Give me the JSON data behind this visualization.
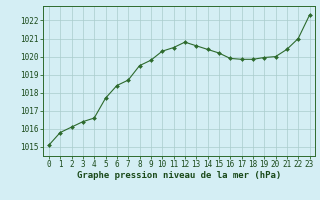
{
  "x": [
    0,
    1,
    2,
    3,
    4,
    5,
    6,
    7,
    8,
    9,
    10,
    11,
    12,
    13,
    14,
    15,
    16,
    17,
    18,
    19,
    20,
    21,
    22,
    23
  ],
  "y": [
    1015.1,
    1015.8,
    1016.1,
    1016.4,
    1016.6,
    1017.7,
    1018.4,
    1018.7,
    1019.5,
    1019.8,
    1020.3,
    1020.5,
    1020.8,
    1020.6,
    1020.4,
    1020.2,
    1019.9,
    1019.85,
    1019.85,
    1019.95,
    1020.0,
    1020.4,
    1021.0,
    1022.3
  ],
  "line_color": "#2d6a2d",
  "marker_color": "#2d6a2d",
  "bg_color": "#d4eef4",
  "grid_color": "#aacccc",
  "title": "Graphe pression niveau de la mer (hPa)",
  "title_color": "#1a4a1a",
  "title_fontsize": 6.5,
  "ylim": [
    1014.5,
    1022.8
  ],
  "yticks": [
    1015,
    1016,
    1017,
    1018,
    1019,
    1020,
    1021,
    1022
  ],
  "xlim": [
    -0.5,
    23.5
  ],
  "xticks": [
    0,
    1,
    2,
    3,
    4,
    5,
    6,
    7,
    8,
    9,
    10,
    11,
    12,
    13,
    14,
    15,
    16,
    17,
    18,
    19,
    20,
    21,
    22,
    23
  ],
  "tick_fontsize": 5.5,
  "tick_color": "#1a4a1a",
  "axis_color": "#2d6a2d"
}
